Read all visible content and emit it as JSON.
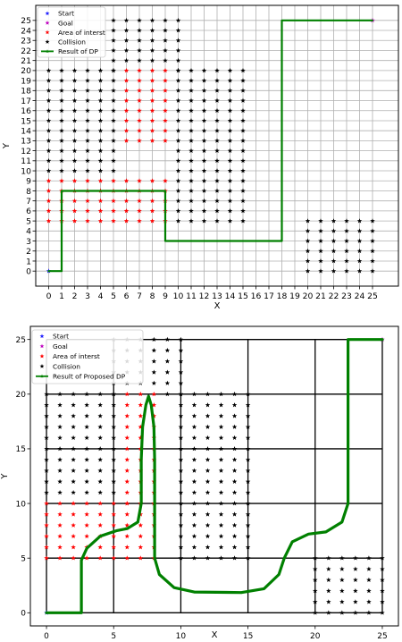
{
  "charts": [
    {
      "chart_data": {
        "type": "scatter",
        "xlabel": "X",
        "ylabel": "Y",
        "xlim": [
          -1,
          27
        ],
        "ylim": [
          -1.5,
          26.5
        ],
        "xticks": [
          0,
          1,
          2,
          3,
          4,
          5,
          6,
          7,
          8,
          9,
          10,
          11,
          12,
          13,
          14,
          15,
          16,
          17,
          18,
          19,
          20,
          21,
          22,
          23,
          24,
          25
        ],
        "yticks": [
          0,
          1,
          2,
          3,
          4,
          5,
          6,
          7,
          8,
          9,
          10,
          11,
          12,
          13,
          14,
          15,
          16,
          17,
          18,
          19,
          20,
          21,
          22,
          23,
          24,
          25
        ],
        "grid": "unit",
        "legend_position": "top-left",
        "series": [
          {
            "name": "Start",
            "marker": "star",
            "color": "#1f1fff",
            "points": [
              [
                0,
                0
              ]
            ]
          },
          {
            "name": "Goal",
            "marker": "star",
            "color": "#bf00bf",
            "points": [
              [
                25,
                25
              ]
            ]
          },
          {
            "name": "Area of interst",
            "marker": "star",
            "color": "#ff0000",
            "rects": [
              {
                "x": [
                  6,
                  9
                ],
                "y": [
                  13,
                  20
                ]
              },
              {
                "x": [
                  0,
                  9
                ],
                "y": [
                  5,
                  9
                ]
              }
            ]
          },
          {
            "name": "Collision",
            "marker": "star",
            "color": "#000000",
            "rects": [
              {
                "x": [
                  5,
                  10
                ],
                "y": [
                  20,
                  25
                ]
              },
              {
                "x": [
                  0,
                  5
                ],
                "y": [
                  10,
                  20
                ]
              },
              {
                "x": [
                  10,
                  15
                ],
                "y": [
                  5,
                  20
                ]
              },
              {
                "x": [
                  20,
                  25
                ],
                "y": [
                  0,
                  5
                ]
              }
            ]
          },
          {
            "name": "Result of DP",
            "type": "line",
            "color": "#008000",
            "points": [
              [
                0,
                0
              ],
              [
                1,
                0
              ],
              [
                1,
                8
              ],
              [
                9,
                8
              ],
              [
                9,
                3
              ],
              [
                18,
                3
              ],
              [
                18,
                25
              ],
              [
                25,
                25
              ]
            ]
          }
        ]
      }
    },
    {
      "chart_data": {
        "type": "scatter",
        "xlabel": "X",
        "ylabel": "Y",
        "xlim": [
          -1.2,
          26.2
        ],
        "ylim": [
          -1.2,
          26.2
        ],
        "xticks": [
          0,
          5,
          10,
          15,
          20,
          25
        ],
        "yticks": [
          0,
          5,
          10,
          15,
          20,
          25
        ],
        "grid": "every 5",
        "legend_position": "top-left",
        "series": [
          {
            "name": "Start",
            "marker": "star",
            "color": "#1f1fff",
            "points": [
              [
                0,
                0
              ]
            ]
          },
          {
            "name": "Goal",
            "marker": "star",
            "color": "#bf00bf",
            "points": [
              [
                25,
                25
              ]
            ]
          },
          {
            "name": "Area of interst",
            "marker": "star",
            "color": "#ff0000",
            "rects": [
              {
                "x": [
                  6,
                  8
                ],
                "y": [
                  10,
                  20
                ]
              },
              {
                "x": [
                  0,
                  8
                ],
                "y": [
                  5,
                  10
                ]
              }
            ]
          },
          {
            "name": "Collision",
            "marker": "star",
            "color": "#000000",
            "rects": [
              {
                "x": [
                  5,
                  10
                ],
                "y": [
                  20,
                  25
                ]
              },
              {
                "x": [
                  0,
                  5
                ],
                "y": [
                  10,
                  20
                ]
              },
              {
                "x": [
                  10,
                  15
                ],
                "y": [
                  5,
                  20
                ]
              },
              {
                "x": [
                  20,
                  25
                ],
                "y": [
                  0,
                  5
                ]
              }
            ]
          },
          {
            "name": "Result of Proposed DP",
            "type": "line",
            "color": "#008000",
            "points": [
              [
                0,
                0
              ],
              [
                2.6,
                0
              ],
              [
                2.6,
                4.8
              ],
              [
                3,
                5.9
              ],
              [
                4,
                7
              ],
              [
                5.2,
                7.5
              ],
              [
                6,
                7.7
              ],
              [
                6.8,
                8.3
              ],
              [
                7.05,
                10
              ],
              [
                7.05,
                14
              ],
              [
                7.15,
                17
              ],
              [
                7.4,
                19
              ],
              [
                7.6,
                19.8
              ],
              [
                7.8,
                19
              ],
              [
                8,
                17
              ],
              [
                8.05,
                14
              ],
              [
                8.05,
                5
              ],
              [
                8.4,
                3.5
              ],
              [
                9.5,
                2.3
              ],
              [
                11,
                1.9
              ],
              [
                14.5,
                1.85
              ],
              [
                16.2,
                2.2
              ],
              [
                17.3,
                3.5
              ],
              [
                17.7,
                5
              ],
              [
                18.3,
                6.5
              ],
              [
                19.5,
                7.2
              ],
              [
                20.8,
                7.4
              ],
              [
                22,
                8.3
              ],
              [
                22.45,
                10
              ],
              [
                22.45,
                25
              ],
              [
                25,
                25
              ]
            ]
          }
        ]
      }
    }
  ],
  "colors": {
    "grid": "#b0b0b0",
    "grid_major": "#000000",
    "axis": "#000000",
    "legend_border": "#cccccc"
  }
}
